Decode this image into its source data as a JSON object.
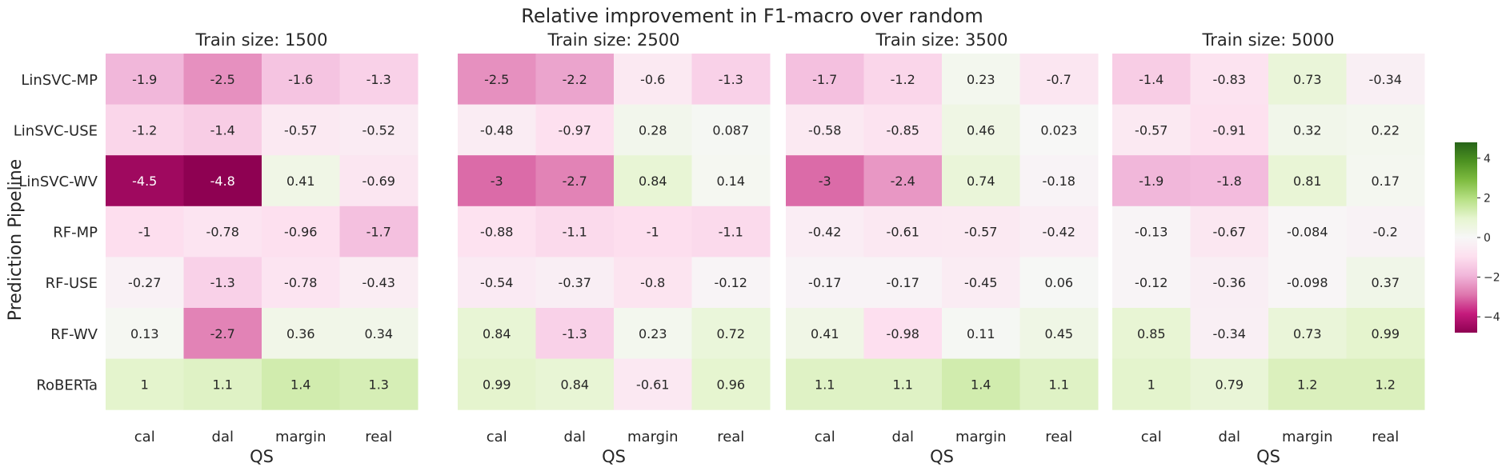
{
  "chart_data": {
    "type": "heatmap",
    "title": "Relative improvement in F1-macro over random",
    "ylabel": "Prediction Pipeline",
    "xlabel": "QS",
    "rows": [
      "LinSVC-MP",
      "LinSVC-USE",
      "LinSVC-WV",
      "RF-MP",
      "RF-USE",
      "RF-WV",
      "RoBERTa"
    ],
    "columns": [
      "cal",
      "dal",
      "margin",
      "real"
    ],
    "colorbar": {
      "ticks": [
        "4",
        "2",
        "0",
        "−2",
        "−4"
      ],
      "range": [
        -4.8,
        4.8
      ],
      "colormap": "PiYG"
    },
    "panels": [
      {
        "title": "Train size: 1500",
        "cells": [
          [
            "-1.9",
            "-2.5",
            "-1.6",
            "-1.3"
          ],
          [
            "-1.2",
            "-1.4",
            "-0.57",
            "-0.52"
          ],
          [
            "-4.5",
            "-4.8",
            "0.41",
            "-0.69"
          ],
          [
            "-1",
            "-0.78",
            "-0.96",
            "-1.7"
          ],
          [
            "-0.27",
            "-1.3",
            "-0.78",
            "-0.43"
          ],
          [
            "0.13",
            "-2.7",
            "0.36",
            "0.34"
          ],
          [
            "1",
            "1.1",
            "1.4",
            "1.3"
          ]
        ]
      },
      {
        "title": "Train size: 2500",
        "cells": [
          [
            "-2.5",
            "-2.2",
            "-0.6",
            "-1.3"
          ],
          [
            "-0.48",
            "-0.97",
            "0.28",
            "0.087"
          ],
          [
            "-3",
            "-2.7",
            "0.84",
            "0.14"
          ],
          [
            "-0.88",
            "-1.1",
            "-1",
            "-1.1"
          ],
          [
            "-0.54",
            "-0.37",
            "-0.8",
            "-0.12"
          ],
          [
            "0.84",
            "-1.3",
            "0.23",
            "0.72"
          ],
          [
            "0.99",
            "0.84",
            "-0.61",
            "0.96"
          ]
        ]
      },
      {
        "title": "Train size: 3500",
        "cells": [
          [
            "-1.7",
            "-1.2",
            "0.23",
            "-0.7"
          ],
          [
            "-0.58",
            "-0.85",
            "0.46",
            "0.023"
          ],
          [
            "-3",
            "-2.4",
            "0.74",
            "-0.18"
          ],
          [
            "-0.42",
            "-0.61",
            "-0.57",
            "-0.42"
          ],
          [
            "-0.17",
            "-0.17",
            "-0.45",
            "0.06"
          ],
          [
            "0.41",
            "-0.98",
            "0.11",
            "0.45"
          ],
          [
            "1.1",
            "1.1",
            "1.4",
            "1.1"
          ]
        ]
      },
      {
        "title": "Train size: 5000",
        "cells": [
          [
            "-1.4",
            "-0.83",
            "0.73",
            "-0.34"
          ],
          [
            "-0.57",
            "-0.91",
            "0.32",
            "0.22"
          ],
          [
            "-1.9",
            "-1.8",
            "0.81",
            "0.17"
          ],
          [
            "-0.13",
            "-0.67",
            "-0.084",
            "-0.2"
          ],
          [
            "-0.12",
            "-0.36",
            "-0.098",
            "0.37"
          ],
          [
            "0.85",
            "-0.34",
            "0.73",
            "0.99"
          ],
          [
            "1",
            "0.79",
            "1.2",
            "1.2"
          ]
        ]
      }
    ]
  }
}
